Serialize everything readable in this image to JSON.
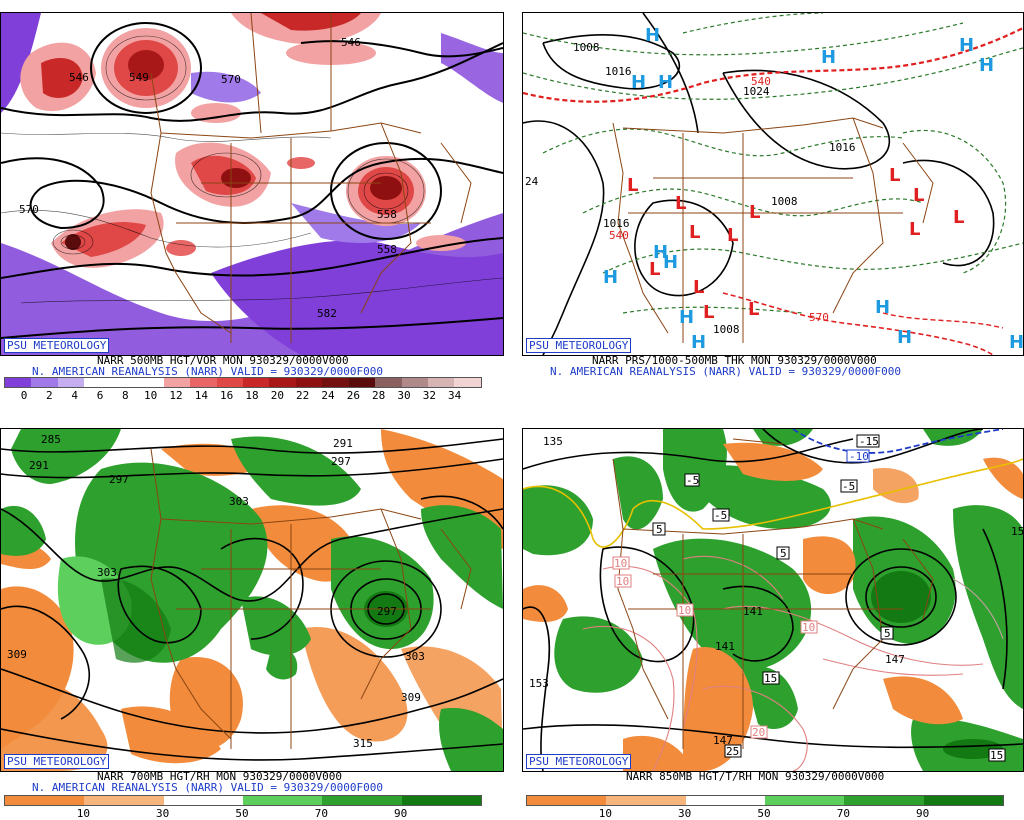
{
  "branding": "PSU METEOROLOGY",
  "panels": {
    "p500": {
      "caption_line1": "NARR 500MB HGT/VOR MON 930329/0000V000",
      "caption_line2": "N. AMERICAN REANALYSIS (NARR) VALID = 930329/0000F000",
      "colorbar_ticks": [
        "0",
        "2",
        "4",
        "6",
        "8",
        "10",
        "12",
        "14",
        "16",
        "18",
        "20",
        "22",
        "24",
        "26",
        "28",
        "30",
        "32",
        "34"
      ],
      "colorbar_colors": [
        "#7f3fd8",
        "#a07ae8",
        "#c4aef0",
        "#ffffff",
        "#ffffff",
        "#ffffff",
        "#f2a2a2",
        "#e86666",
        "#e04848",
        "#c82828",
        "#a81818",
        "#8e1010",
        "#741010",
        "#5a0c0c",
        "#8a6060",
        "#b08a8a",
        "#d6b4b4",
        "#f0d4d4"
      ],
      "height_labels": [
        "546",
        "570",
        "549",
        "570",
        "546",
        "558",
        "558",
        "582"
      ]
    },
    "psfc": {
      "caption_line1": "NARR PRS/1000-500MB THK MON 930329/0000V000",
      "caption_line2": "N. AMERICAN REANALYSIS (NARR) VALID = 930329/0000F000",
      "pressure_labels": [
        "1008",
        "1016",
        "1024",
        "1016",
        "1008",
        "1016",
        "1008"
      ],
      "thickness_labels": [
        "540",
        "540",
        "570",
        "24"
      ]
    },
    "p700": {
      "caption_line1": "NARR 700MB HGT/RH MON 930329/0000V000",
      "caption_line2": "N. AMERICAN REANALYSIS (NARR) VALID = 930329/0000F000",
      "colorbar_ticks": [
        "10",
        "30",
        "50",
        "70",
        "90"
      ],
      "colorbar_colors": [
        "#f28c3c",
        "#f7b57e",
        "#ffffff",
        "#5ccf5c",
        "#2ea02e",
        "#137a13"
      ],
      "height_labels": [
        "285",
        "291",
        "291",
        "297",
        "297",
        "303",
        "303",
        "309",
        "297",
        "303",
        "309",
        "315"
      ]
    },
    "p850": {
      "caption_line1": "NARR 850MB HGT/T/RH MON 930329/0000V000",
      "colorbar_ticks": [
        "10",
        "30",
        "50",
        "70",
        "90"
      ],
      "colorbar_colors": [
        "#f28c3c",
        "#f7b57e",
        "#ffffff",
        "#5ccf5c",
        "#2ea02e",
        "#137a13"
      ],
      "height_labels": [
        "135",
        "141",
        "141",
        "147",
        "147",
        "153",
        "15"
      ],
      "temp_labels": [
        "-15",
        "-10",
        "-5",
        "-5",
        "-5",
        "5",
        "5",
        "5",
        "10",
        "10",
        "10",
        "10",
        "15",
        "20",
        "25",
        "15"
      ]
    }
  },
  "colors": {
    "contour": "#000000",
    "borders": "#8b4513",
    "highs": "#1e9be0",
    "lows": "#e02020",
    "thickness": "#e02020",
    "thickness_cold": "#2b7a2b",
    "freezing": "#1e3cc8",
    "warm_iso": "#e08080",
    "yellow_iso": "#e8c000"
  },
  "symbols": {
    "high": "H",
    "low": "L"
  }
}
